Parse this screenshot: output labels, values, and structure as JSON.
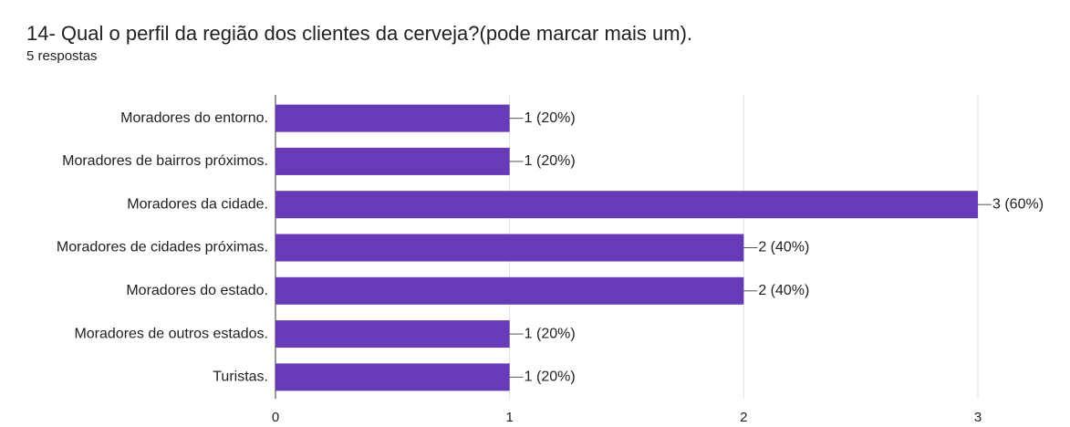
{
  "chart_data": {
    "type": "bar",
    "orientation": "horizontal",
    "title": "14- Qual o perfil da região dos clientes da cerveja?(pode marcar mais um).",
    "subtitle": "5 respostas",
    "categories": [
      "Moradores do entorno.",
      "Moradores de bairros próximos.",
      "Moradores da cidade.",
      "Moradores de cidades próximas.",
      "Moradores do estado.",
      "Moradores de outros estados.",
      "Turistas."
    ],
    "values": [
      1,
      1,
      3,
      2,
      2,
      1,
      1
    ],
    "value_labels": [
      "1 (20%)",
      "1 (20%)",
      "3 (60%)",
      "2 (40%)",
      "2 (40%)",
      "1 (20%)",
      "1 (20%)"
    ],
    "color": "#673ab7",
    "xlim": [
      0,
      3
    ],
    "xticks": [
      0,
      1,
      2,
      3
    ],
    "grid": true
  }
}
